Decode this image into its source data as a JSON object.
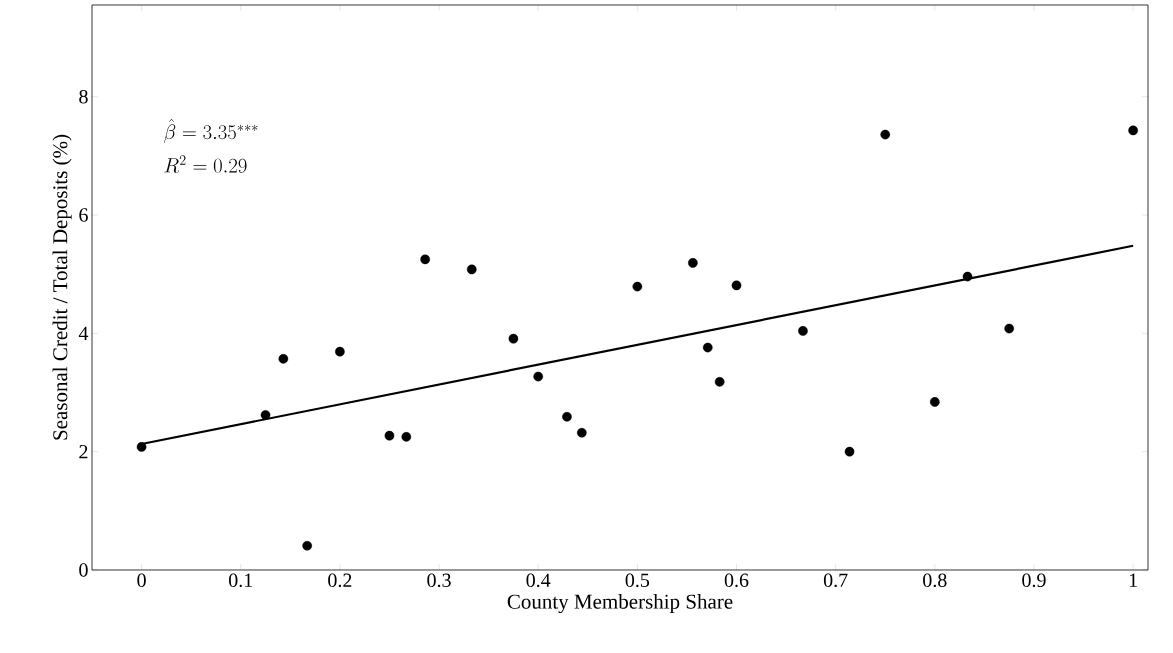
{
  "chart_data": {
    "type": "scatter",
    "xlabel": "County Membership Share",
    "ylabel": "Seasonal Credit / Total Deposits (%)",
    "annotations": [
      "\\hat{\\beta} = 3.35^{***}",
      "R^2 = 0.29"
    ],
    "xlim": [
      -0.05,
      1.015
    ],
    "ylim": [
      0,
      9.55
    ],
    "xticks": [
      0,
      0.1,
      0.2,
      0.3,
      0.4,
      0.5,
      0.6,
      0.7,
      0.8,
      0.9,
      1
    ],
    "yticks": [
      0,
      2,
      4,
      6,
      8
    ],
    "series": [
      {
        "color": "#000000",
        "marker": "circle",
        "x": [
          0,
          0.125,
          0.143,
          0.167,
          0.2,
          0.25,
          0.267,
          0.286,
          0.333,
          0.375,
          0.4,
          0.429,
          0.444,
          0.5,
          0.556,
          0.571,
          0.583,
          0.6,
          0.667,
          0.714,
          0.75,
          0.8,
          0.833,
          0.875,
          1
        ],
        "values": [
          2.08,
          2.62,
          3.57,
          0.41,
          3.69,
          2.27,
          2.25,
          5.25,
          5.08,
          3.91,
          3.27,
          2.59,
          2.32,
          4.79,
          5.19,
          3.76,
          3.18,
          4.81,
          4.04,
          2.0,
          7.36,
          2.84,
          4.96,
          4.08,
          7.43
        ]
      },
      {
        "type": "line",
        "color": "#000000",
        "x": [
          0,
          1
        ],
        "values": [
          2.13,
          5.48
        ]
      }
    ]
  }
}
